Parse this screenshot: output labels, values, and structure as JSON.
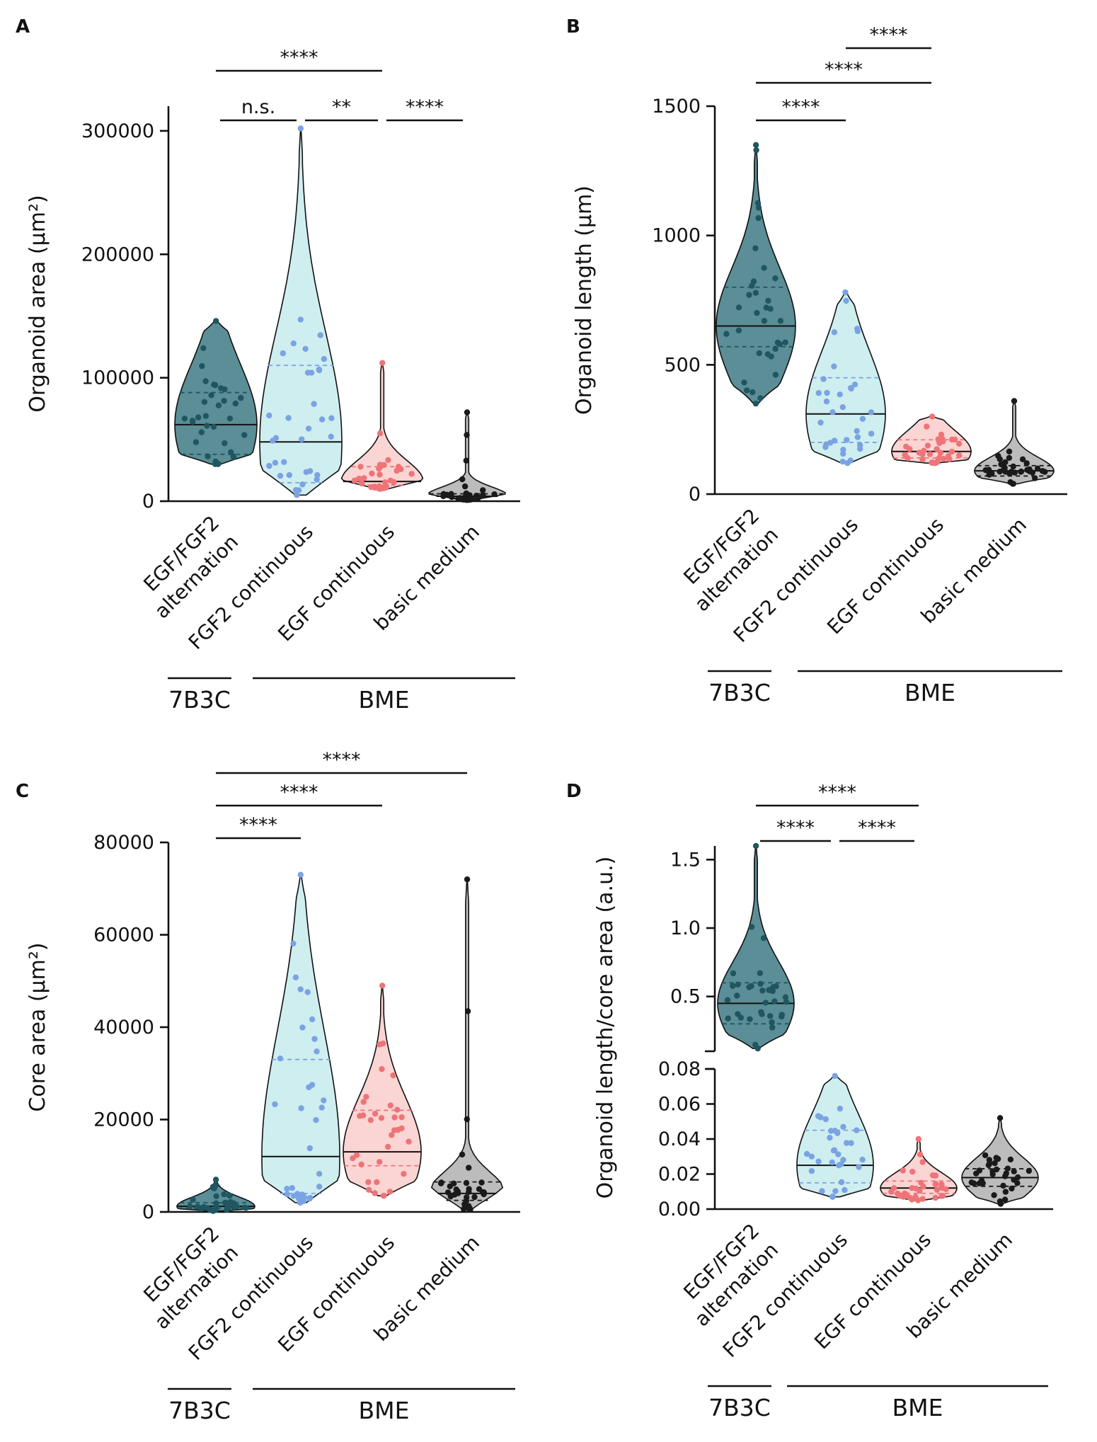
{
  "colors": {
    "EGF/FGF2 alternation": {
      "fill": "#5b8e96",
      "dot": "#1f5660"
    },
    "FGF2 continuous": {
      "fill": "#cfeef0",
      "dot": "#7aa3e3"
    },
    "EGF continuous": {
      "fill": "#fbd5d3",
      "dot": "#ee7478"
    },
    "basic medium": {
      "fill": "#bcbcbc",
      "dot": "#1a1a1a"
    }
  },
  "chart_data": [
    {
      "panel": "A",
      "type": "violin",
      "ylabel": "Organoid area (μm²)",
      "ylim": [
        0,
        320000
      ],
      "yticks": [
        0,
        100000,
        200000,
        300000
      ],
      "ytick_labels": [
        "0",
        "100000",
        "200000",
        "300000"
      ],
      "categories": [
        "EGF/FGF2\nalternation",
        "FGF2 continuous",
        "EGF continuous",
        "basic medium"
      ],
      "groups": [
        {
          "label": "7B3C",
          "from": 0,
          "to": 0
        },
        {
          "label": "BME",
          "from": 1,
          "to": 3
        }
      ],
      "series": [
        {
          "name": "EGF/FGF2 alternation",
          "min": 30000,
          "max": 146000,
          "median": 62000,
          "q1": 38000,
          "q3": 88000
        },
        {
          "name": "FGF2 continuous",
          "min": 5000,
          "max": 302000,
          "median": 48000,
          "q1": 15000,
          "q3": 110000
        },
        {
          "name": "EGF continuous",
          "min": 10000,
          "max": 112000,
          "median": 16000,
          "q1": 13000,
          "q3": 28000
        },
        {
          "name": "basic medium",
          "min": 1000,
          "max": 72000,
          "median": 4000,
          "q1": 2500,
          "q3": 6000
        }
      ],
      "comparisons": [
        {
          "from": 0,
          "to": 2,
          "label": "****"
        },
        {
          "from": 0,
          "to": 1,
          "label": "n.s."
        },
        {
          "from": 1,
          "to": 2,
          "label": "**"
        },
        {
          "from": 2,
          "to": 3,
          "label": "****"
        }
      ]
    },
    {
      "panel": "B",
      "type": "violin",
      "ylabel": "Organoid length (μm)",
      "ylim": [
        0,
        1500
      ],
      "yticks": [
        0,
        500,
        1000,
        1500
      ],
      "ytick_labels": [
        "0",
        "500",
        "1000",
        "1500"
      ],
      "categories": [
        "EGF/FGF2\nalternation",
        "FGF2 continuous",
        "EGF continuous",
        "basic medium"
      ],
      "groups": [
        {
          "label": "7B3C",
          "from": 0,
          "to": 0
        },
        {
          "label": "BME",
          "from": 1,
          "to": 3
        }
      ],
      "series": [
        {
          "name": "EGF/FGF2 alternation",
          "min": 350,
          "max": 1350,
          "median": 650,
          "q1": 570,
          "q3": 800
        },
        {
          "name": "FGF2 continuous",
          "min": 120,
          "max": 780,
          "median": 310,
          "q1": 200,
          "q3": 450
        },
        {
          "name": "EGF continuous",
          "min": 120,
          "max": 300,
          "median": 165,
          "q1": 140,
          "q3": 210
        },
        {
          "name": "basic medium",
          "min": 40,
          "max": 360,
          "median": 90,
          "q1": 70,
          "q3": 110
        }
      ],
      "comparisons": [
        {
          "from": 1,
          "to": 2,
          "label": "****"
        },
        {
          "from": 0,
          "to": 2,
          "label": "****"
        },
        {
          "from": 0,
          "to": 1,
          "label": "****"
        }
      ]
    },
    {
      "panel": "C",
      "type": "violin",
      "ylabel": "Core area (μm²)",
      "ylim": [
        0,
        80000
      ],
      "yticks": [
        0,
        20000,
        40000,
        60000,
        80000
      ],
      "ytick_labels": [
        "0",
        "20000",
        "40000",
        "60000",
        "80000"
      ],
      "categories": [
        "EGF/FGF2\nalternation",
        "FGF2 continuous",
        "EGF continuous",
        "basic medium"
      ],
      "groups": [
        {
          "label": "7B3C",
          "from": 0,
          "to": 0
        },
        {
          "label": "BME",
          "from": 1,
          "to": 3
        }
      ],
      "series": [
        {
          "name": "EGF/FGF2 alternation",
          "min": 200,
          "max": 7000,
          "median": 1200,
          "q1": 800,
          "q3": 2000
        },
        {
          "name": "FGF2 continuous",
          "min": 2000,
          "max": 73000,
          "median": 12000,
          "q1": 4000,
          "q3": 33000
        },
        {
          "name": "EGF continuous",
          "min": 3500,
          "max": 49000,
          "median": 13000,
          "q1": 10000,
          "q3": 22000
        },
        {
          "name": "basic medium",
          "min": 500,
          "max": 72000,
          "median": 4000,
          "q1": 2500,
          "q3": 6500
        }
      ],
      "comparisons": [
        {
          "from": 0,
          "to": 3,
          "label": "****"
        },
        {
          "from": 0,
          "to": 2,
          "label": "****"
        },
        {
          "from": 0,
          "to": 1,
          "label": "****"
        }
      ]
    },
    {
      "panel": "D",
      "type": "violin",
      "ylabel": "Organoid length/core area (a.u.)",
      "broken_axis": true,
      "upper_ylim": [
        0.1,
        1.6
      ],
      "upper_yticks": [
        0.5,
        1.0,
        1.5
      ],
      "upper_ytick_labels": [
        "0.5",
        "1.0",
        "1.5"
      ],
      "lower_ylim": [
        0,
        0.08
      ],
      "lower_yticks": [
        0,
        0.02,
        0.04,
        0.06,
        0.08
      ],
      "lower_ytick_labels": [
        "0.00",
        "0.02",
        "0.04",
        "0.06",
        "0.08"
      ],
      "categories": [
        "EGF/FGF2\nalternation",
        "FGF2 continuous",
        "EGF continuous",
        "basic medium"
      ],
      "groups": [
        {
          "label": "7B3C",
          "from": 0,
          "to": 0
        },
        {
          "label": "BME",
          "from": 1,
          "to": 3
        }
      ],
      "series": [
        {
          "name": "EGF/FGF2 alternation",
          "min": 0.12,
          "max": 1.6,
          "median": 0.45,
          "q1": 0.3,
          "q3": 0.6
        },
        {
          "name": "FGF2 continuous",
          "min": 0.007,
          "max": 0.076,
          "median": 0.025,
          "q1": 0.015,
          "q3": 0.045
        },
        {
          "name": "EGF continuous",
          "min": 0.005,
          "max": 0.04,
          "median": 0.012,
          "q1": 0.009,
          "q3": 0.016
        },
        {
          "name": "basic medium",
          "min": 0.003,
          "max": 0.052,
          "median": 0.018,
          "q1": 0.013,
          "q3": 0.023
        }
      ],
      "comparisons": [
        {
          "from": 0,
          "to": 2,
          "label": "****"
        },
        {
          "from": 0,
          "to": 1,
          "label": "****"
        },
        {
          "from": 1,
          "to": 2,
          "label": "****"
        }
      ]
    }
  ]
}
